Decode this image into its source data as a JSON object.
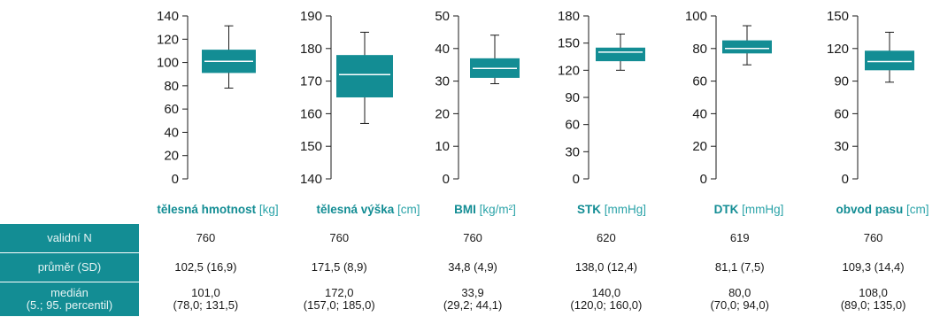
{
  "colors": {
    "box": "#138d94",
    "median": "#ffffff",
    "label_unit": "#2aa3a8",
    "row_header_bg": "#138d94"
  },
  "chart_data": [
    {
      "type": "box",
      "label_bold": "tělesná hmotnost",
      "label_unit": "[kg]",
      "ylim": [
        0,
        140
      ],
      "ticks": [
        "0",
        "20",
        "40",
        "60",
        "80",
        "100",
        "120",
        "140"
      ],
      "box": {
        "whisker_low": 78.0,
        "q1": 91,
        "median": 101.0,
        "q3": 111,
        "whisker_high": 131.5
      }
    },
    {
      "type": "box",
      "label_bold": "tělesná výška",
      "label_unit": "[cm]",
      "ylim": [
        140,
        190
      ],
      "ticks": [
        "140",
        "150",
        "160",
        "170",
        "180",
        "190"
      ],
      "box": {
        "whisker_low": 157.0,
        "q1": 165,
        "median": 172.0,
        "q3": 178,
        "whisker_high": 185.0
      }
    },
    {
      "type": "box",
      "label_bold": "BMI",
      "label_unit": "[kg/m²]",
      "ylim": [
        0,
        50
      ],
      "ticks": [
        "0",
        "10",
        "20",
        "30",
        "40",
        "50"
      ],
      "box": {
        "whisker_low": 29.2,
        "q1": 31,
        "median": 33.9,
        "q3": 37,
        "whisker_high": 44.1
      }
    },
    {
      "type": "box",
      "label_bold": "STK",
      "label_unit": "[mmHg]",
      "ylim": [
        0,
        180
      ],
      "ticks": [
        "0",
        "30",
        "60",
        "90",
        "120",
        "150",
        "180"
      ],
      "box": {
        "whisker_low": 120.0,
        "q1": 130,
        "median": 140.0,
        "q3": 145,
        "whisker_high": 160.0
      }
    },
    {
      "type": "box",
      "label_bold": "DTK",
      "label_unit": "[mmHg]",
      "ylim": [
        0,
        100
      ],
      "ticks": [
        "0",
        "20",
        "40",
        "60",
        "80",
        "100"
      ],
      "box": {
        "whisker_low": 70.0,
        "q1": 77,
        "median": 80.0,
        "q3": 85,
        "whisker_high": 94.0
      }
    },
    {
      "type": "box",
      "label_bold": "obvod pasu",
      "label_unit": "[cm]",
      "ylim": [
        0,
        150
      ],
      "ticks": [
        "0",
        "30",
        "60",
        "90",
        "120",
        "150"
      ],
      "box": {
        "whisker_low": 89.0,
        "q1": 100,
        "median": 108.0,
        "q3": 118,
        "whisker_high": 135.0
      }
    }
  ],
  "table": {
    "rows": [
      {
        "header": "validní N",
        "cells": [
          "760",
          "760",
          "760",
          "620",
          "619",
          "760"
        ]
      },
      {
        "header": "průměr (SD)",
        "cells": [
          "102,5 (16,9)",
          "171,5 (8,9)",
          "34,8 (4,9)",
          "138,0 (12,4)",
          "81,1 (7,5)",
          "109,3 (14,4)"
        ]
      },
      {
        "header_line1": "medián",
        "header_line2": "(5.; 95. percentil)",
        "cells_line1": [
          "101,0",
          "172,0",
          "33,9",
          "140,0",
          "80,0",
          "108,0"
        ],
        "cells_line2": [
          "(78,0; 131,5)",
          "(157,0; 185,0)",
          "(29,2; 44,1)",
          "(120,0; 160,0)",
          "(70,0; 94,0)",
          "(89,0; 135,0)"
        ]
      }
    ]
  }
}
